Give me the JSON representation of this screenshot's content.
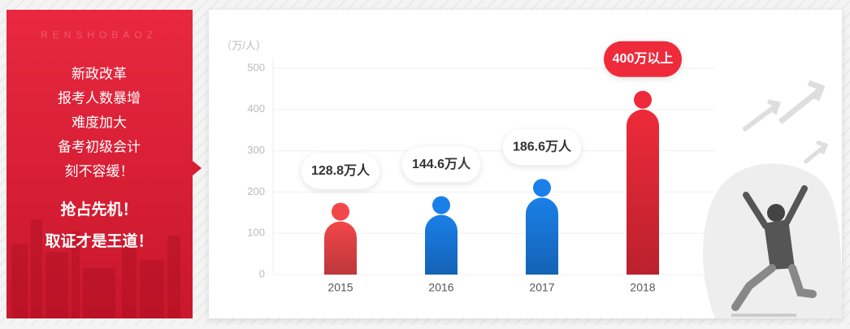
{
  "left_panel": {
    "watermark": "RENSHOBAOZ",
    "lines": [
      "新政改革",
      "报考人数暴增",
      "难度加大",
      "备考初级会计",
      "刻不容缓！"
    ],
    "slogans": [
      "抢占先机！",
      "取证才是王道！"
    ]
  },
  "chart_data": {
    "type": "bar",
    "y_label": "（万/人）",
    "categories": [
      "2015",
      "2016",
      "2017",
      "2018"
    ],
    "values": [
      128.8,
      144.6,
      186.6,
      400
    ],
    "value_labels": [
      "128.8万人",
      "144.6万人",
      "186.6万人",
      "400万以上"
    ],
    "colors": [
      "#f2474a",
      "#1a7fe8",
      "#1a7fe8",
      "#ee2a3a"
    ],
    "label_colors": [
      "#ffffff",
      "#ffffff",
      "#ffffff",
      "#ee2a3a"
    ],
    "ylim": [
      0,
      500
    ],
    "yticks": [
      0,
      100,
      200,
      300,
      400,
      500
    ],
    "grid": true
  }
}
